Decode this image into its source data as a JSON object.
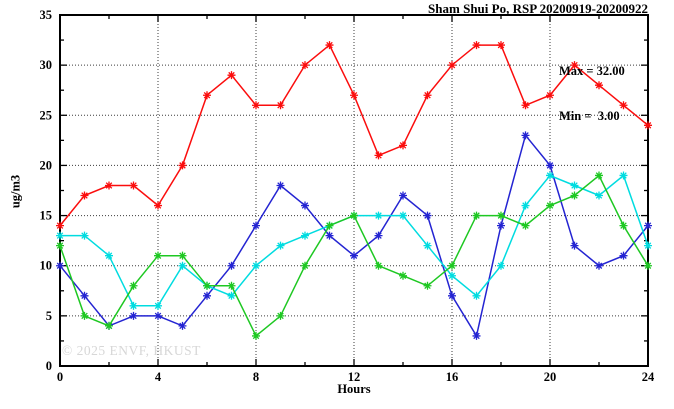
{
  "chart": {
    "title": "Sham Shui Po, RSP 20200919-20200922",
    "legend": {
      "max_label": "Max = 32.00",
      "min_label": "Min =  3.00"
    },
    "ylabel": "ug/m3",
    "xlabel": "Hours",
    "watermark": "© 2025 ENVF, HKUST"
  },
  "chart_data": {
    "type": "line",
    "title": "Sham Shui Po, RSP 20200919-20200922",
    "xlabel": "Hours",
    "ylabel": "ug/m3",
    "xlim": [
      0,
      24
    ],
    "ylim": [
      0,
      35
    ],
    "x_major_ticks": [
      0,
      4,
      8,
      12,
      16,
      20,
      24
    ],
    "x_minor_ticks": [
      2,
      6,
      10,
      14,
      18,
      22
    ],
    "y_major_ticks": [
      0,
      5,
      10,
      15,
      20,
      25,
      30,
      35
    ],
    "y_minor_ticks": [
      2.5,
      7.5,
      12.5,
      17.5,
      22.5,
      27.5,
      32.5
    ],
    "grid_x_values": [
      4,
      8,
      12,
      16,
      20
    ],
    "grid_y_values": [
      5,
      10,
      15,
      20,
      25,
      30
    ],
    "grid": true,
    "legend_position": "top-right-inside",
    "stats": {
      "max": 32.0,
      "min": 3.0
    },
    "marker": "asterisk",
    "x": [
      0,
      1,
      2,
      3,
      4,
      5,
      6,
      7,
      8,
      9,
      10,
      11,
      12,
      13,
      14,
      15,
      16,
      17,
      18,
      19,
      20,
      21,
      22,
      23,
      24
    ],
    "series": [
      {
        "name": "day-1-red",
        "color": "#fb0d0d",
        "values": [
          14,
          17,
          18,
          18,
          16,
          20,
          27,
          29,
          26,
          26,
          30,
          32,
          27,
          21,
          22,
          27,
          30,
          32,
          32,
          26,
          27,
          30,
          28,
          26,
          24
        ]
      },
      {
        "name": "day-2-blue",
        "color": "#2424d2",
        "values": [
          10,
          7,
          4,
          5,
          5,
          4,
          7,
          10,
          14,
          18,
          16,
          13,
          11,
          13,
          17,
          15,
          7,
          3,
          14,
          23,
          20,
          12,
          10,
          11,
          14
        ]
      },
      {
        "name": "day-3-cyan",
        "color": "#00dce0",
        "values": [
          13,
          13,
          11,
          6,
          6,
          10,
          8,
          7,
          10,
          12,
          13,
          14,
          15,
          15,
          15,
          12,
          9,
          7,
          10,
          16,
          19,
          18,
          17,
          19,
          12
        ]
      },
      {
        "name": "day-4-green",
        "color": "#1ec822",
        "values": [
          12,
          5,
          4,
          8,
          11,
          11,
          8,
          8,
          3,
          5,
          10,
          14,
          15,
          10,
          9,
          8,
          10,
          15,
          15,
          14,
          16,
          17,
          19,
          14,
          10
        ]
      }
    ]
  }
}
